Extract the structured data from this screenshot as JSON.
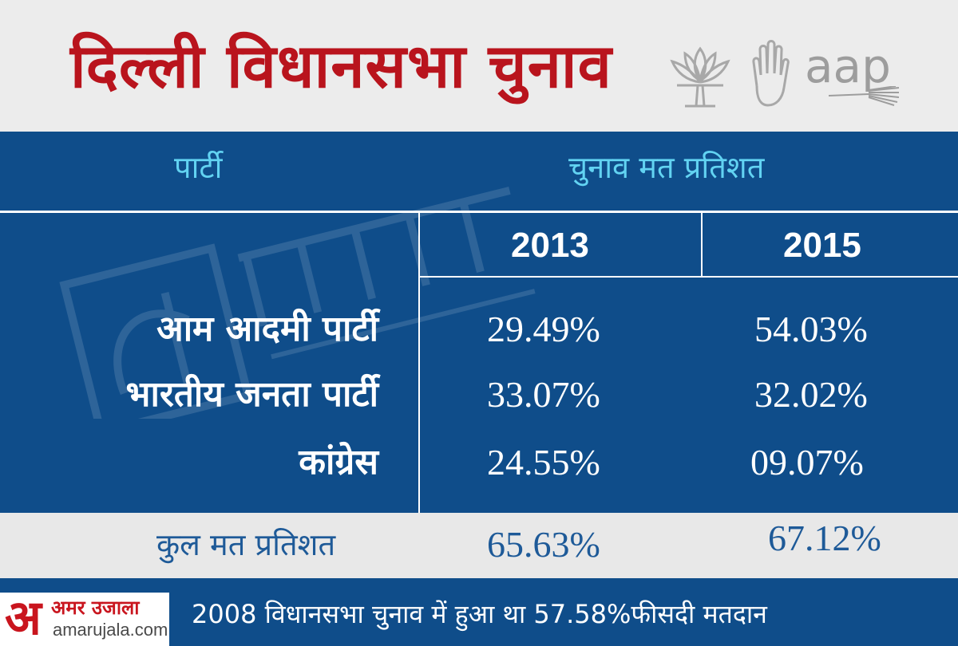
{
  "header": {
    "title": "दिल्ली विधानसभा चुनाव",
    "logos": {
      "bjp": "lotus-icon",
      "congress": "hand-icon",
      "aap": "aap",
      "aap_icon": "broom-icon"
    }
  },
  "table": {
    "col_party": "पार्टी",
    "col_vote": "चुनाव मत प्रतिशत",
    "years": [
      "2013",
      "2015"
    ],
    "rows": [
      {
        "party": "आम आदमी पार्टी",
        "v2013": "29.49%",
        "v2015": "54.03%"
      },
      {
        "party": "भारतीय जनता पार्टी",
        "v2013": "33.07%",
        "v2015": "32.02%"
      },
      {
        "party": "कांग्रेस",
        "v2013": "24.55%",
        "v2015": "09.07%"
      }
    ],
    "total": {
      "label": "कुल मत प्रतिशत",
      "v2013": "65.63%",
      "v2015": "67.12%"
    }
  },
  "footer": {
    "brand_mark": "अ",
    "brand_name": "अमर उजाला",
    "brand_url": "amarujala.com",
    "note": "2008 विधानसभा चुनाव में हुआ था 57.58%फीसदी मतदान"
  },
  "colors": {
    "title_red": "#b9141d",
    "table_blue": "#0f4d8a",
    "header_cyan": "#62d3f2",
    "total_text_blue": "#1e5a98"
  }
}
